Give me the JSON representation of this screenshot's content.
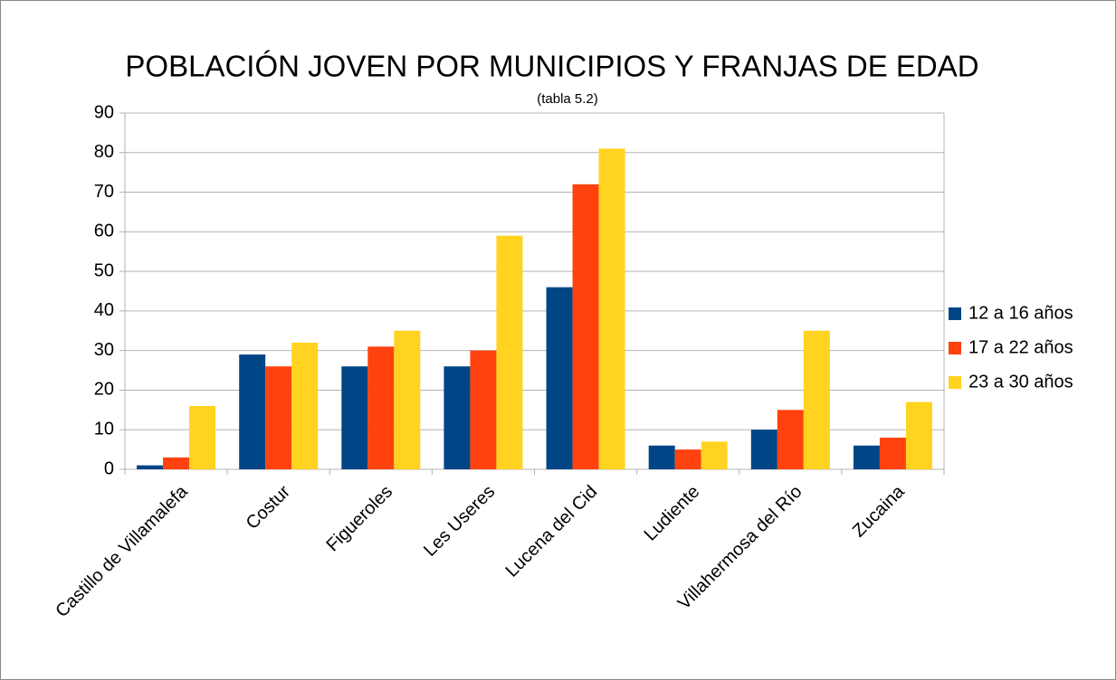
{
  "chart_data": {
    "type": "bar",
    "title": "POBLACIÓN JOVEN POR MUNICIPIOS Y FRANJAS DE EDAD",
    "subtitle": "(tabla 5.2)",
    "categories": [
      "Castillo de Villamalefa",
      "Costur",
      "Figueroles",
      "Les Useres",
      "Lucena del Cid",
      "Ludiente",
      "Villahermosa del Río",
      "Zucaina"
    ],
    "series": [
      {
        "name": "12 a 16 años",
        "color": "#004586",
        "values": [
          1,
          29,
          26,
          26,
          46,
          6,
          10,
          6
        ]
      },
      {
        "name": "17 a 22 años",
        "color": "#ff420e",
        "values": [
          3,
          26,
          31,
          30,
          72,
          5,
          15,
          8
        ]
      },
      {
        "name": "23 a 30 años",
        "color": "#ffd320",
        "values": [
          16,
          32,
          35,
          59,
          81,
          7,
          35,
          17
        ]
      }
    ],
    "ylim": [
      0,
      90
    ],
    "yticks": [
      0,
      10,
      20,
      30,
      40,
      50,
      60,
      70,
      80,
      90
    ],
    "grid": true,
    "legend": "right"
  }
}
